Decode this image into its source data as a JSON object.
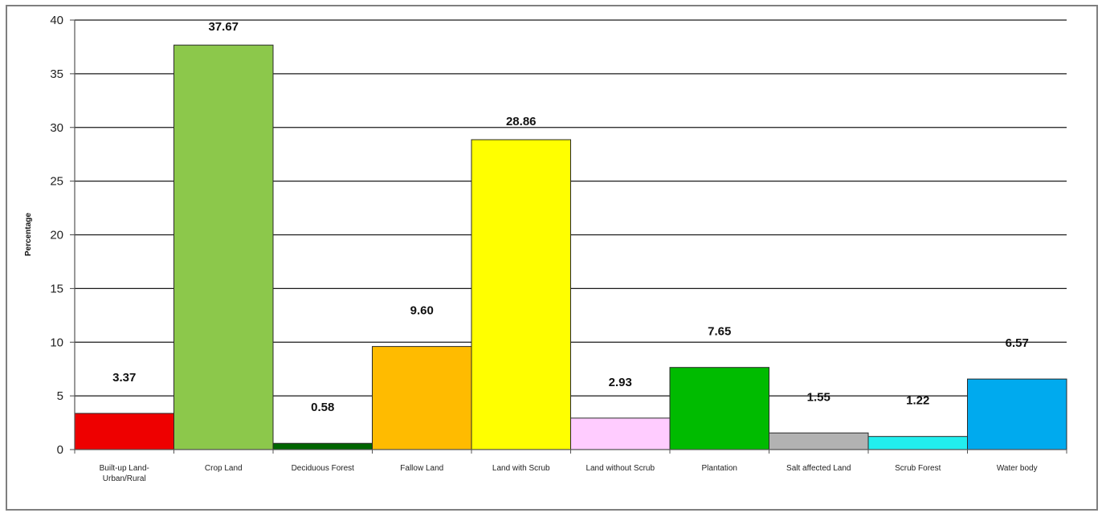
{
  "chart_data": {
    "type": "bar",
    "ylabel": "Percentage",
    "xlabel": "",
    "ylim": [
      0,
      40
    ],
    "yticks": [
      0,
      5,
      10,
      15,
      20,
      25,
      30,
      35,
      40
    ],
    "grid": true,
    "categories": [
      [
        "Built-up Land-",
        "Urban/Rural"
      ],
      [
        "Crop Land"
      ],
      [
        "Deciduous Forest"
      ],
      [
        "Fallow Land"
      ],
      [
        "Land with Scrub"
      ],
      [
        "Land without Scrub"
      ],
      [
        "Plantation"
      ],
      [
        "Salt affected Land"
      ],
      [
        "Scrub Forest"
      ],
      [
        "Water body"
      ]
    ],
    "values": [
      3.37,
      37.67,
      0.58,
      9.6,
      28.86,
      2.93,
      7.65,
      1.55,
      1.22,
      6.57
    ],
    "value_labels": [
      "3.37",
      "37.67",
      "0.58",
      "9.60",
      "28.86",
      "2.93",
      "7.65",
      "1.55",
      "1.22",
      "6.57"
    ],
    "colors": [
      "#ee0000",
      "#8cc84b",
      "#006600",
      "#ffbb00",
      "#ffff00",
      "#ffccff",
      "#00bb00",
      "#b2b2b2",
      "#22eeee",
      "#00aaee"
    ]
  }
}
